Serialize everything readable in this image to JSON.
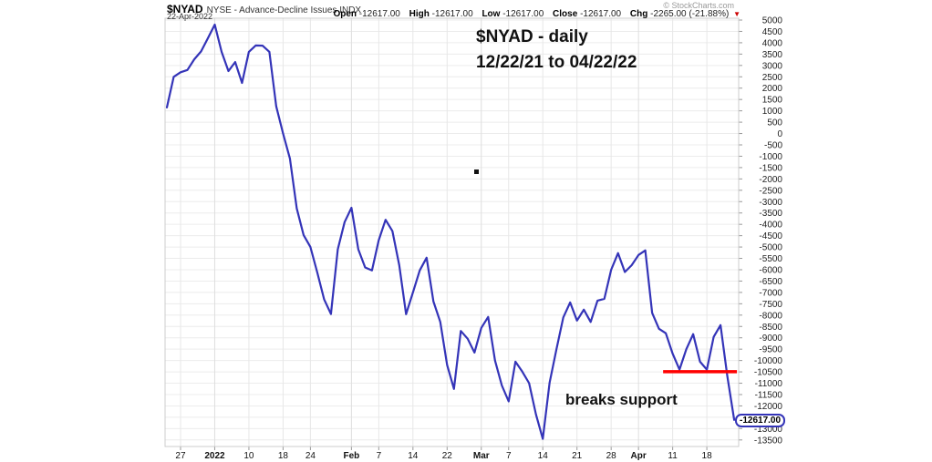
{
  "header": {
    "symbol": "$NYAD",
    "description": "NYSE - Advance-Decline Issues INDX",
    "date": "22-Apr-2022",
    "copyright": "© StockCharts.com",
    "quote": {
      "open_label": "Open",
      "open": "-12617.00",
      "high_label": "High",
      "high": "-12617.00",
      "low_label": "Low",
      "low": "-12617.00",
      "close_label": "Close",
      "close": "-12617.00",
      "chg_label": "Chg",
      "chg": "-2265.00 (-21.88%)",
      "direction": "down",
      "arrow_glyph": "▼"
    }
  },
  "chart_data": {
    "type": "line",
    "title": "$NYAD - daily 12/22/21 to 04/22/22",
    "ylabel": "",
    "xlabel": "",
    "ylim": [
      -13500,
      5000
    ],
    "y_step": 500,
    "grid": true,
    "legend_position": "none",
    "line_color": "#3434b8",
    "grid_color": "#ececec",
    "frame_color": "#cccccc",
    "series": [
      {
        "name": "$NYAD",
        "values": [
          1150,
          2500,
          2700,
          2800,
          3270,
          3620,
          4200,
          4800,
          3600,
          2750,
          3150,
          2230,
          3600,
          3880,
          3870,
          3600,
          1200,
          0,
          -1100,
          -3300,
          -4470,
          -5000,
          -6120,
          -7300,
          -7950,
          -5100,
          -3900,
          -3270,
          -5100,
          -5900,
          -6030,
          -4700,
          -3800,
          -4300,
          -5800,
          -7960,
          -7000,
          -6030,
          -5470,
          -7400,
          -8300,
          -10200,
          -11250,
          -8700,
          -9040,
          -9650,
          -8560,
          -8080,
          -10000,
          -11100,
          -11800,
          -10050,
          -10490,
          -11000,
          -12370,
          -13450,
          -10970,
          -9500,
          -8100,
          -7440,
          -8240,
          -7760,
          -8300,
          -7360,
          -7280,
          -6000,
          -5270,
          -6100,
          -5800,
          -5350,
          -5150,
          -7900,
          -8600,
          -8800,
          -9700,
          -10400,
          -9500,
          -8840,
          -10050,
          -10400,
          -8960,
          -8440,
          -10700,
          -12617
        ]
      }
    ],
    "x_tick_labels": [
      {
        "i": 2,
        "label": "27",
        "bold": false
      },
      {
        "i": 7,
        "label": "2022",
        "bold": true
      },
      {
        "i": 12,
        "label": "10",
        "bold": false
      },
      {
        "i": 17,
        "label": "18",
        "bold": false
      },
      {
        "i": 21,
        "label": "24",
        "bold": false
      },
      {
        "i": 27,
        "label": "Feb",
        "bold": true
      },
      {
        "i": 31,
        "label": "7",
        "bold": false
      },
      {
        "i": 36,
        "label": "14",
        "bold": false
      },
      {
        "i": 41,
        "label": "22",
        "bold": false
      },
      {
        "i": 46,
        "label": "Mar",
        "bold": true
      },
      {
        "i": 50,
        "label": "7",
        "bold": false
      },
      {
        "i": 55,
        "label": "14",
        "bold": false
      },
      {
        "i": 60,
        "label": "21",
        "bold": false
      },
      {
        "i": 65,
        "label": "28",
        "bold": false
      },
      {
        "i": 69,
        "label": "Apr",
        "bold": true
      },
      {
        "i": 74,
        "label": "11",
        "bold": false
      },
      {
        "i": 79,
        "label": "18",
        "bold": false
      }
    ],
    "support_line": {
      "value": -10490,
      "from_day": 72.6,
      "to_day": 83.4,
      "color": "#ff0000"
    },
    "last_value": -12617.0,
    "last_value_label": "-12617.00",
    "annotations": [
      {
        "id": "range-title",
        "line1": "$NYAD - daily",
        "line2": "12/22/21 to 04/22/22"
      },
      {
        "id": "breaks-support",
        "text": "breaks support"
      },
      {
        "id": "stray-dot",
        "x": 520,
        "y": 186
      }
    ]
  }
}
